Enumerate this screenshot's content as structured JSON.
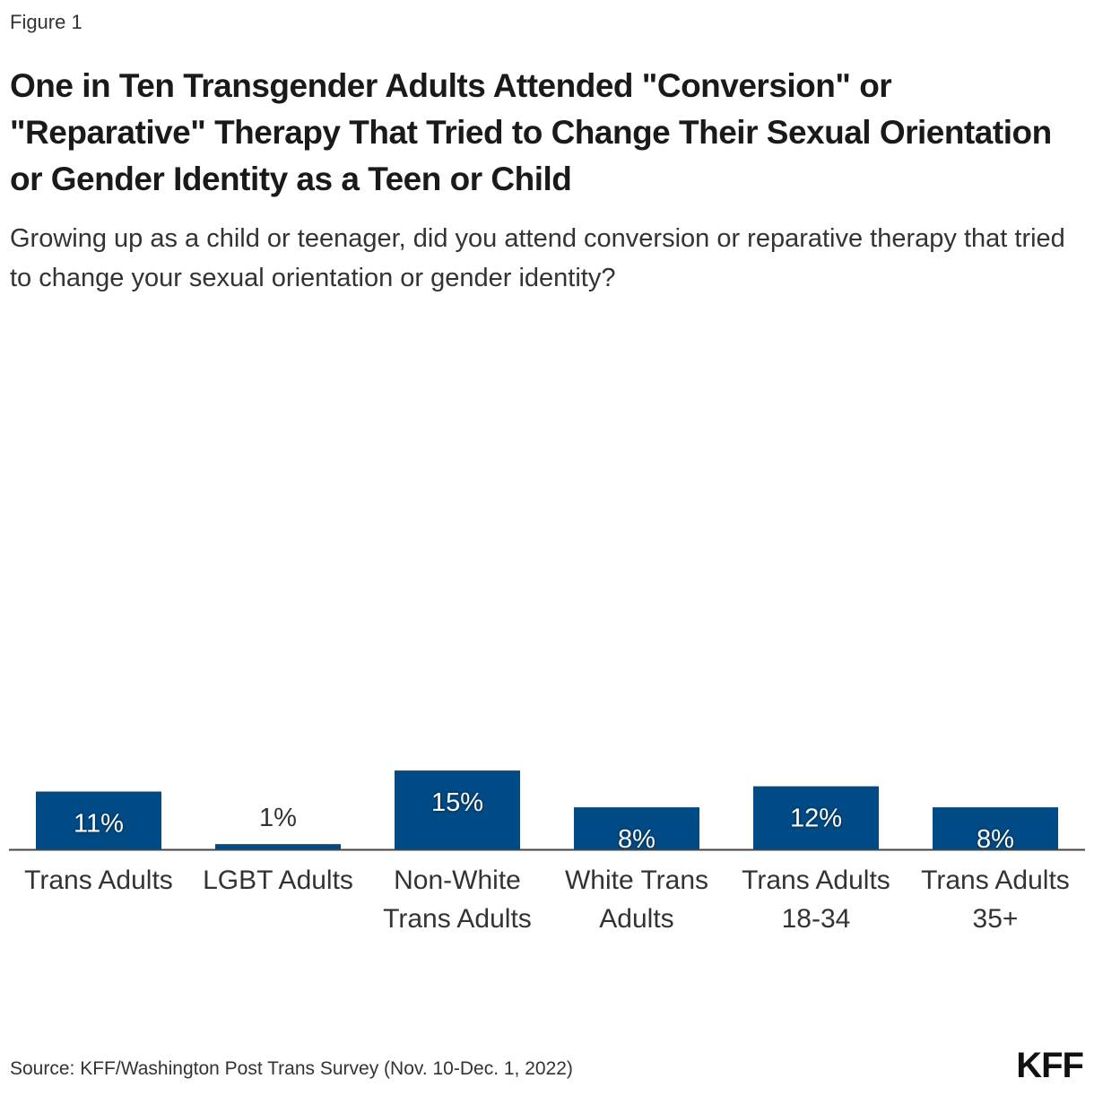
{
  "figure_label": "Figure 1",
  "source": "Source: KFF/Washington Post Trans Survey (Nov. 10-Dec. 1, 2022)",
  "logo": "KFF",
  "colors": {
    "bar": "#004A85",
    "label_inside": "#ffffff",
    "label_outside": "#333333",
    "axis": "#444444"
  },
  "chart_data": {
    "type": "bar",
    "title": "One in Ten Transgender Adults Attended \"Conversion\" or \"Reparative\" Therapy That Tried to Change Their Sexual Orientation or Gender Identity  as a Teen or Child",
    "subtitle": "Growing up as a child or teenager, did you attend conversion or reparative therapy that tried to change your sexual orientation or gender identity?",
    "categories": [
      "Trans Adults",
      "LGBT Adults",
      "Non-White Trans Adults",
      "White Trans Adults",
      "Trans Adults 18-34",
      "Trans Adults 35+"
    ],
    "values": [
      11,
      1,
      15,
      8,
      12,
      8
    ],
    "data_labels": [
      "11%",
      "1%",
      "15%",
      "8%",
      "12%",
      "8%"
    ],
    "ylim": [
      0,
      100
    ],
    "grid": false,
    "legend": "none"
  }
}
